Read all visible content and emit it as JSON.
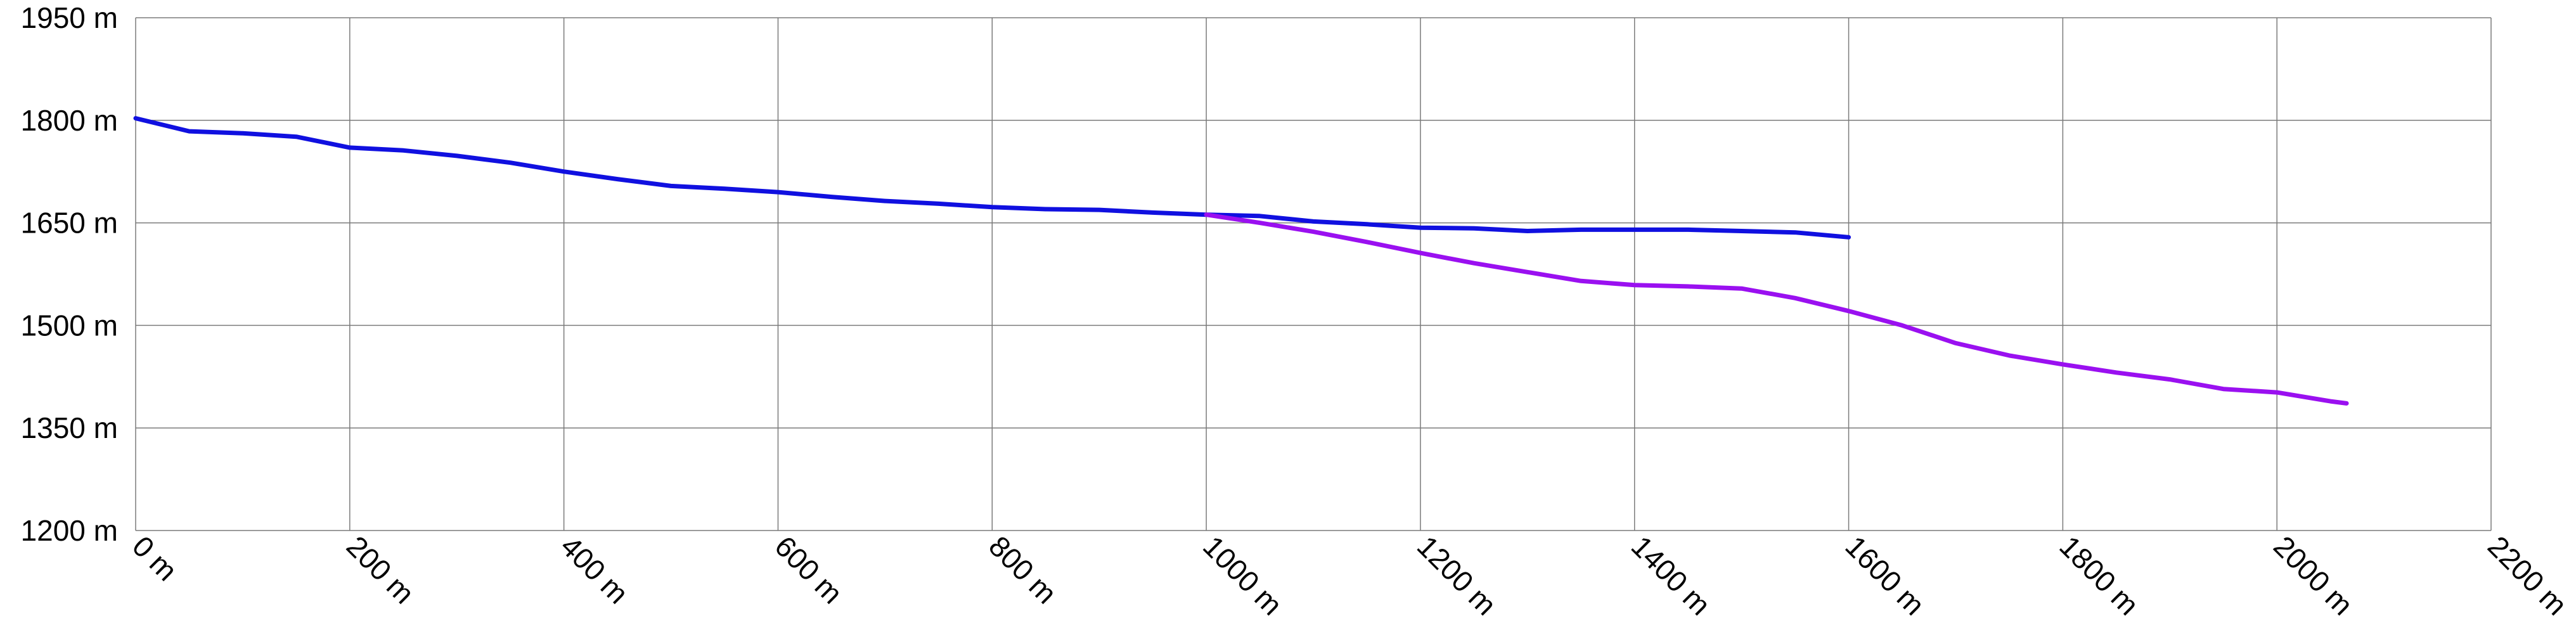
{
  "chart_data": {
    "type": "line",
    "title": "",
    "xlabel": "",
    "ylabel": "",
    "x_unit": "m",
    "y_unit": "m",
    "xlim": [
      0,
      2200
    ],
    "ylim": [
      1200,
      1950
    ],
    "x_ticks": [
      0,
      200,
      400,
      600,
      800,
      1000,
      1200,
      1400,
      1600,
      1800,
      2000,
      2200
    ],
    "y_ticks": [
      1200,
      1350,
      1500,
      1650,
      1800,
      1950
    ],
    "x_tick_labels": [
      "0 m",
      "200 m",
      "400 m",
      "600 m",
      "800 m",
      "1000 m",
      "1200 m",
      "1400 m",
      "1600 m",
      "1800 m",
      "2000 m",
      "2200 m"
    ],
    "y_tick_labels": [
      "1200 m",
      "1350 m",
      "1500 m",
      "1650 m",
      "1800 m",
      "1950 m"
    ],
    "grid": true,
    "legend": "none",
    "series": [
      {
        "color": "#1010e0",
        "points": [
          [
            0,
            1803
          ],
          [
            50,
            1784
          ],
          [
            100,
            1781
          ],
          [
            150,
            1776
          ],
          [
            200,
            1760
          ],
          [
            250,
            1756
          ],
          [
            300,
            1748
          ],
          [
            350,
            1738
          ],
          [
            400,
            1725
          ],
          [
            450,
            1714
          ],
          [
            500,
            1704
          ],
          [
            550,
            1700
          ],
          [
            600,
            1695
          ],
          [
            650,
            1688
          ],
          [
            700,
            1682
          ],
          [
            750,
            1678
          ],
          [
            800,
            1673
          ],
          [
            850,
            1670
          ],
          [
            900,
            1669
          ],
          [
            950,
            1665
          ],
          [
            1000,
            1662
          ],
          [
            1050,
            1660
          ],
          [
            1100,
            1652
          ],
          [
            1150,
            1648
          ],
          [
            1200,
            1643
          ],
          [
            1250,
            1642
          ],
          [
            1300,
            1638
          ],
          [
            1350,
            1640
          ],
          [
            1400,
            1640
          ],
          [
            1450,
            1640
          ],
          [
            1500,
            1638
          ],
          [
            1550,
            1636
          ],
          [
            1600,
            1629
          ]
        ]
      },
      {
        "color": "#9a10f0",
        "points": [
          [
            1000,
            1662
          ],
          [
            1050,
            1650
          ],
          [
            1100,
            1637
          ],
          [
            1150,
            1622
          ],
          [
            1200,
            1606
          ],
          [
            1250,
            1591
          ],
          [
            1300,
            1578
          ],
          [
            1350,
            1565
          ],
          [
            1400,
            1559
          ],
          [
            1450,
            1557
          ],
          [
            1500,
            1554
          ],
          [
            1550,
            1540
          ],
          [
            1600,
            1521
          ],
          [
            1650,
            1500
          ],
          [
            1700,
            1474
          ],
          [
            1750,
            1456
          ],
          [
            1800,
            1443
          ],
          [
            1850,
            1431
          ],
          [
            1900,
            1421
          ],
          [
            1950,
            1407
          ],
          [
            2000,
            1402
          ],
          [
            2050,
            1389
          ],
          [
            2065,
            1386
          ]
        ]
      }
    ]
  }
}
